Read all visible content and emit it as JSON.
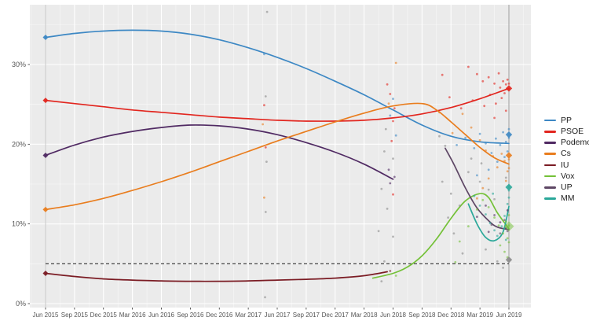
{
  "chart_data": {
    "type": "line",
    "title": "",
    "x_labels": [
      "Jun 2015",
      "Sep 2015",
      "Dec 2015",
      "Mar 2016",
      "Jun 2016",
      "Sep 2016",
      "Dec 2016",
      "Mar 2017",
      "Jun 2017",
      "Sep 2017",
      "Dec 2017",
      "Mar 2018",
      "Jun 2018",
      "Sep 2018",
      "Dec 2018",
      "Mar 2019",
      "Jun 2019"
    ],
    "yticks": [
      "0%",
      "10%",
      "20%",
      "30%"
    ],
    "ytick_values": [
      0,
      10,
      20,
      30
    ],
    "ylim": [
      0,
      37.5
    ],
    "grid": "on",
    "panel_color": "#ebebeb",
    "grid_color": "#ffffff",
    "threshold_line": {
      "value": 5,
      "style": "dashed",
      "color": "#333333"
    },
    "election_lines": [
      {
        "x": 0,
        "color": "#c6c6c6"
      },
      {
        "x": 16,
        "color": "#9d9d9d"
      }
    ],
    "colors": {
      "PP": "#3d88c4",
      "PSOE": "#e2261f",
      "Podemos": "#502a63",
      "Cs": "#e97d1e",
      "IU": "#7b1c24",
      "Vox": "#74c138",
      "UP": "#5e4765",
      "MM": "#2ba89a",
      "gray": "#8b8b8b"
    },
    "legend": {
      "position": "right",
      "items": [
        {
          "label": "PP",
          "color": "#3d88c4"
        },
        {
          "label": "PSOE",
          "color": "#e2261f"
        },
        {
          "label": "Podemos",
          "color": "#502a63"
        },
        {
          "label": "Cs",
          "color": "#e97d1e"
        },
        {
          "label": "IU",
          "color": "#7b1c24"
        },
        {
          "label": "Vox",
          "color": "#74c138"
        },
        {
          "label": "UP",
          "color": "#5e4765"
        },
        {
          "label": "MM",
          "color": "#2ba89a"
        }
      ]
    },
    "series": [
      {
        "name": "PP",
        "color": "#3d88c4",
        "points": [
          [
            0,
            33.4
          ],
          [
            1,
            33.9
          ],
          [
            2,
            34.2
          ],
          [
            3,
            34.3
          ],
          [
            4,
            34.2
          ],
          [
            5,
            33.8
          ],
          [
            6,
            33.1
          ],
          [
            7,
            32.1
          ],
          [
            8,
            30.9
          ],
          [
            9,
            29.5
          ],
          [
            10,
            27.9
          ],
          [
            11,
            26.2
          ],
          [
            12,
            24.3
          ],
          [
            13,
            22.4
          ],
          [
            14,
            21.0
          ],
          [
            15,
            20.3
          ],
          [
            16,
            20.1
          ]
        ]
      },
      {
        "name": "PSOE",
        "color": "#e2261f",
        "points": [
          [
            0,
            25.5
          ],
          [
            1,
            25.1
          ],
          [
            2,
            24.7
          ],
          [
            3,
            24.3
          ],
          [
            4,
            24.0
          ],
          [
            5,
            23.7
          ],
          [
            6,
            23.4
          ],
          [
            7,
            23.2
          ],
          [
            8,
            23.0
          ],
          [
            9,
            22.9
          ],
          [
            10,
            22.9
          ],
          [
            11,
            23.0
          ],
          [
            12,
            23.3
          ],
          [
            13,
            23.8
          ],
          [
            14,
            24.6
          ],
          [
            15,
            25.7
          ],
          [
            16,
            27.0
          ]
        ]
      },
      {
        "name": "Podemos",
        "color": "#502a63",
        "points": [
          [
            0,
            18.6
          ],
          [
            1,
            19.9
          ],
          [
            2,
            20.9
          ],
          [
            3,
            21.6
          ],
          [
            4,
            22.1
          ],
          [
            5,
            22.4
          ],
          [
            6,
            22.3
          ],
          [
            7,
            21.9
          ],
          [
            8,
            21.2
          ],
          [
            9,
            20.2
          ],
          [
            10,
            19.0
          ],
          [
            11,
            17.5
          ],
          [
            12,
            15.6
          ]
        ]
      },
      {
        "name": "Cs",
        "color": "#e97d1e",
        "points": [
          [
            0,
            11.8
          ],
          [
            1,
            12.4
          ],
          [
            2,
            13.2
          ],
          [
            3,
            14.2
          ],
          [
            4,
            15.3
          ],
          [
            5,
            16.5
          ],
          [
            6,
            17.8
          ],
          [
            7,
            19.1
          ],
          [
            8,
            20.4
          ],
          [
            9,
            21.6
          ],
          [
            10,
            22.8
          ],
          [
            11,
            23.9
          ],
          [
            12,
            24.8
          ],
          [
            13,
            25.1
          ],
          [
            13.5,
            24.3
          ],
          [
            14,
            22.8
          ],
          [
            14.5,
            21.2
          ],
          [
            15,
            19.6
          ],
          [
            15.5,
            18.3
          ],
          [
            16,
            17.5
          ]
        ]
      },
      {
        "name": "IU",
        "color": "#7b1c24",
        "points": [
          [
            0,
            3.8
          ],
          [
            1,
            3.4
          ],
          [
            2,
            3.1
          ],
          [
            3,
            2.95
          ],
          [
            4,
            2.85
          ],
          [
            5,
            2.8
          ],
          [
            6,
            2.8
          ],
          [
            7,
            2.85
          ],
          [
            8,
            2.95
          ],
          [
            9,
            3.05
          ],
          [
            10,
            3.2
          ],
          [
            11,
            3.5
          ],
          [
            11.8,
            4.0
          ]
        ]
      },
      {
        "name": "Vox",
        "color": "#74c138",
        "points": [
          [
            11.3,
            3.2
          ],
          [
            12,
            3.8
          ],
          [
            12.5,
            4.6
          ],
          [
            13,
            6.0
          ],
          [
            13.5,
            8.1
          ],
          [
            14,
            10.7
          ],
          [
            14.5,
            12.9
          ],
          [
            15,
            13.8
          ],
          [
            15.3,
            13.3
          ],
          [
            15.6,
            11.4
          ],
          [
            16,
            9.4
          ]
        ]
      },
      {
        "name": "UP",
        "color": "#5e4765",
        "points": [
          [
            13.8,
            19.5
          ],
          [
            14.1,
            17.5
          ],
          [
            14.5,
            14.5
          ],
          [
            14.9,
            12.0
          ],
          [
            15.3,
            10.4
          ],
          [
            15.6,
            9.6
          ],
          [
            16,
            9.3
          ]
        ]
      },
      {
        "name": "MM",
        "color": "#2ba89a",
        "points": [
          [
            14.6,
            12.5
          ],
          [
            14.9,
            10.0
          ],
          [
            15.2,
            8.3
          ],
          [
            15.5,
            7.9
          ],
          [
            15.8,
            9.0
          ],
          [
            16,
            12.2
          ]
        ]
      }
    ],
    "election_results": [
      {
        "x": 0,
        "markers": [
          {
            "party": "PP",
            "value": 33.4,
            "color": "#3d88c4",
            "size": 3.5,
            "opacity": 0.95
          },
          {
            "party": "PSOE",
            "value": 25.5,
            "color": "#e2261f",
            "size": 3.5,
            "opacity": 0.95
          },
          {
            "party": "Podemos",
            "value": 18.6,
            "color": "#502a63",
            "size": 3.5,
            "opacity": 0.95
          },
          {
            "party": "Cs",
            "value": 11.8,
            "color": "#e97d1e",
            "size": 3.5,
            "opacity": 0.95
          },
          {
            "party": "IU",
            "value": 3.8,
            "color": "#7b1c24",
            "size": 3.5,
            "opacity": 0.95
          }
        ]
      },
      {
        "x": 16,
        "markers": [
          {
            "party": "PSOE",
            "value": 27.0,
            "color": "#e2261f",
            "size": 4.2,
            "opacity": 0.9
          },
          {
            "party": "PP",
            "value": 21.2,
            "color": "#3d88c4",
            "size": 4.2,
            "opacity": 0.9
          },
          {
            "party": "Cs",
            "value": 18.6,
            "color": "#e97d1e",
            "size": 4.2,
            "opacity": 0.9
          },
          {
            "party": "MM",
            "value": 14.6,
            "color": "#2ba89a",
            "size": 4.5,
            "opacity": 0.9
          },
          {
            "party": "Vox",
            "value": 9.7,
            "color": "#74c138",
            "size": 6.5,
            "opacity": 0.5
          },
          {
            "party": "Other",
            "value": 5.5,
            "color": "#8b8b8b",
            "size": 4.2,
            "opacity": 0.9
          }
        ]
      }
    ],
    "poll_scatter": [
      [
        7.65,
        36.6,
        "gray"
      ],
      [
        7.55,
        31.3,
        "PP"
      ],
      [
        7.6,
        26.0,
        "gray"
      ],
      [
        7.55,
        24.9,
        "PSOE"
      ],
      [
        7.5,
        22.5,
        "Cs"
      ],
      [
        7.6,
        19.6,
        "PSOE"
      ],
      [
        7.63,
        17.8,
        "gray"
      ],
      [
        7.55,
        13.3,
        "Cs"
      ],
      [
        7.6,
        11.5,
        "gray"
      ],
      [
        7.58,
        0.8,
        "gray"
      ],
      [
        12.1,
        30.2,
        "Cs"
      ],
      [
        11.8,
        27.5,
        "PSOE"
      ],
      [
        11.9,
        26.3,
        "PSOE"
      ],
      [
        12.0,
        25.7,
        "PP"
      ],
      [
        11.85,
        25.1,
        "Cs"
      ],
      [
        12.05,
        24.5,
        "PSOE"
      ],
      [
        11.9,
        23.6,
        "PP"
      ],
      [
        12.0,
        22.9,
        "PSOE"
      ],
      [
        11.75,
        21.9,
        "gray"
      ],
      [
        12.1,
        21.1,
        "PP"
      ],
      [
        11.95,
        20.4,
        "PSOE"
      ],
      [
        11.7,
        19.1,
        "gray"
      ],
      [
        12.0,
        18.2,
        "gray"
      ],
      [
        11.85,
        16.8,
        "Podemos"
      ],
      [
        12.05,
        15.9,
        "Podemos"
      ],
      [
        11.9,
        15.1,
        "Podemos"
      ],
      [
        11.6,
        14.4,
        "gray"
      ],
      [
        12.0,
        13.7,
        "PSOE"
      ],
      [
        11.8,
        11.9,
        "gray"
      ],
      [
        11.5,
        9.1,
        "gray"
      ],
      [
        12.0,
        8.4,
        "gray"
      ],
      [
        11.7,
        5.3,
        "gray"
      ],
      [
        11.9,
        4.1,
        "IU"
      ],
      [
        12.1,
        3.5,
        "Vox"
      ],
      [
        11.6,
        2.8,
        "gray"
      ],
      [
        13.7,
        28.7,
        "PSOE"
      ],
      [
        14.6,
        29.7,
        "PSOE"
      ],
      [
        14.9,
        28.8,
        "PSOE"
      ],
      [
        15.1,
        27.9,
        "PSOE"
      ],
      [
        15.3,
        28.4,
        "PSOE"
      ],
      [
        15.5,
        27.6,
        "PSOE"
      ],
      [
        15.65,
        28.9,
        "PSOE"
      ],
      [
        15.7,
        27.1,
        "PSOE"
      ],
      [
        15.8,
        27.9,
        "PSOE"
      ],
      [
        15.85,
        26.4,
        "PSOE"
      ],
      [
        15.9,
        27.5,
        "PSOE"
      ],
      [
        15.95,
        28.1,
        "PSOE"
      ],
      [
        16,
        26.9,
        "PSOE"
      ],
      [
        16,
        27.6,
        "PSOE"
      ],
      [
        15.75,
        25.8,
        "PSOE"
      ],
      [
        15.55,
        25.1,
        "PSOE"
      ],
      [
        15.35,
        26.2,
        "PSOE"
      ],
      [
        15.15,
        24.8,
        "PSOE"
      ],
      [
        14.75,
        25.5,
        "PSOE"
      ],
      [
        14.35,
        24.5,
        "PSOE"
      ],
      [
        13.95,
        25.9,
        "PSOE"
      ],
      [
        15.9,
        24.2,
        "PSOE"
      ],
      [
        15.5,
        23.3,
        "PSOE"
      ],
      [
        14.5,
        20.8,
        "PP"
      ],
      [
        14.8,
        19.5,
        "PP"
      ],
      [
        15.0,
        21.3,
        "PP"
      ],
      [
        15.2,
        20.1,
        "PP"
      ],
      [
        15.4,
        18.9,
        "PP"
      ],
      [
        15.55,
        20.7,
        "PP"
      ],
      [
        15.7,
        19.9,
        "PP"
      ],
      [
        15.8,
        21.5,
        "PP"
      ],
      [
        15.9,
        20.3,
        "PP"
      ],
      [
        15.95,
        19.1,
        "PP"
      ],
      [
        16,
        20.8,
        "PP"
      ],
      [
        16,
        21.9,
        "PP"
      ],
      [
        15.6,
        17.8,
        "PP"
      ],
      [
        15.3,
        16.8,
        "PP"
      ],
      [
        14.9,
        16.1,
        "PP"
      ],
      [
        15.85,
        18.4,
        "PP"
      ],
      [
        14.2,
        19.9,
        "PP"
      ],
      [
        13.6,
        24.0,
        "Cs"
      ],
      [
        14.4,
        23.8,
        "Cs"
      ],
      [
        14.7,
        22.1,
        "Cs"
      ],
      [
        15.0,
        20.5,
        "Cs"
      ],
      [
        15.2,
        19.2,
        "Cs"
      ],
      [
        15.45,
        18.5,
        "Cs"
      ],
      [
        15.6,
        17.1,
        "Cs"
      ],
      [
        15.75,
        18.8,
        "Cs"
      ],
      [
        15.85,
        17.9,
        "Cs"
      ],
      [
        15.95,
        16.6,
        "Cs"
      ],
      [
        16,
        18.1,
        "Cs"
      ],
      [
        16,
        17.0,
        "Cs"
      ],
      [
        15.3,
        15.7,
        "Cs"
      ],
      [
        15.1,
        14.5,
        "Cs"
      ],
      [
        14.9,
        13.2,
        "Cs"
      ],
      [
        15.9,
        15.4,
        "Cs"
      ],
      [
        14.05,
        21.4,
        "Cs"
      ],
      [
        15.2,
        12.3,
        "Podemos"
      ],
      [
        15.5,
        11.1,
        "Podemos"
      ],
      [
        15.7,
        10.2,
        "Podemos"
      ],
      [
        15.9,
        9.5,
        "Podemos"
      ],
      [
        15.95,
        11.7,
        "Podemos"
      ],
      [
        14.9,
        10.9,
        "Podemos"
      ],
      [
        15.3,
        9.0,
        "Podemos"
      ],
      [
        15.4,
        9.9,
        "UP"
      ],
      [
        15.7,
        8.8,
        "UP"
      ],
      [
        15.85,
        10.5,
        "UP"
      ],
      [
        15.95,
        9.1,
        "UP"
      ],
      [
        14.3,
        7.8,
        "Vox"
      ],
      [
        14.6,
        9.7,
        "Vox"
      ],
      [
        14.9,
        11.8,
        "Vox"
      ],
      [
        15.1,
        13.0,
        "Vox"
      ],
      [
        15.3,
        12.1,
        "Vox"
      ],
      [
        15.5,
        10.8,
        "Vox"
      ],
      [
        15.65,
        9.8,
        "Vox"
      ],
      [
        15.8,
        8.8,
        "Vox"
      ],
      [
        15.9,
        10.3,
        "Vox"
      ],
      [
        15.95,
        8.2,
        "Vox"
      ],
      [
        16,
        9.8,
        "Vox"
      ],
      [
        16,
        11.1,
        "Vox"
      ],
      [
        15.7,
        7.3,
        "Vox"
      ],
      [
        15.85,
        6.5,
        "Vox"
      ],
      [
        15.95,
        5.8,
        "Vox"
      ],
      [
        14.15,
        5.2,
        "Vox"
      ],
      [
        16,
        7.7,
        "Vox"
      ],
      [
        14.8,
        13.5,
        "MM"
      ],
      [
        15.0,
        12.3,
        "MM"
      ],
      [
        15.2,
        11.2,
        "MM"
      ],
      [
        15.35,
        10.1,
        "MM"
      ],
      [
        15.5,
        9.2,
        "MM"
      ],
      [
        15.6,
        8.5,
        "MM"
      ],
      [
        15.75,
        9.7,
        "MM"
      ],
      [
        15.85,
        11.0,
        "MM"
      ],
      [
        15.95,
        12.5,
        "MM"
      ],
      [
        16,
        13.3,
        "MM"
      ],
      [
        15.9,
        8.0,
        "MM"
      ],
      [
        15.45,
        13.8,
        "MM"
      ],
      [
        16,
        14.2,
        "MM"
      ],
      [
        13.7,
        15.3,
        "gray"
      ],
      [
        14.0,
        13.8,
        "gray"
      ],
      [
        14.3,
        12.3,
        "gray"
      ],
      [
        14.6,
        16.5,
        "gray"
      ],
      [
        15.0,
        15.3,
        "gray"
      ],
      [
        15.3,
        14.3,
        "gray"
      ],
      [
        15.5,
        13.1,
        "gray"
      ],
      [
        15.2,
        6.8,
        "gray"
      ],
      [
        15.6,
        5.3,
        "gray"
      ],
      [
        15.8,
        4.5,
        "gray"
      ],
      [
        14.1,
        8.8,
        "gray"
      ],
      [
        14.4,
        6.3,
        "gray"
      ],
      [
        13.9,
        10.8,
        "gray"
      ],
      [
        15.9,
        15.8,
        "gray"
      ],
      [
        14.7,
        18.2,
        "gray"
      ],
      [
        13.8,
        19.8,
        "gray"
      ],
      [
        15.05,
        17.6,
        "gray"
      ],
      [
        13.6,
        21.0,
        "gray"
      ]
    ]
  }
}
